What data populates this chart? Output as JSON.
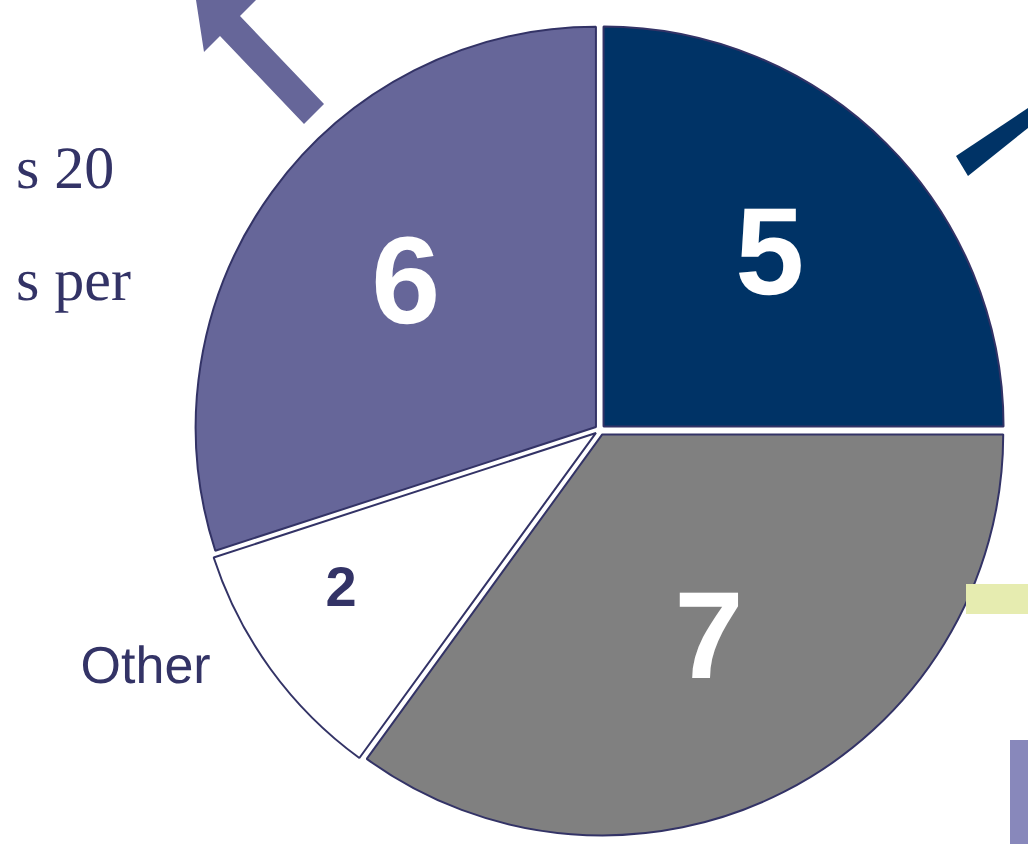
{
  "chart_data": {
    "type": "pie",
    "categories": [
      null,
      null,
      "Other",
      null
    ],
    "values": [
      5,
      7,
      2,
      6
    ],
    "colors": [
      "#003366",
      "#808080",
      "#ffffff",
      "#666699"
    ],
    "data_labels": true,
    "legend": false,
    "annotations": [
      "s 20",
      "s per"
    ]
  }
}
